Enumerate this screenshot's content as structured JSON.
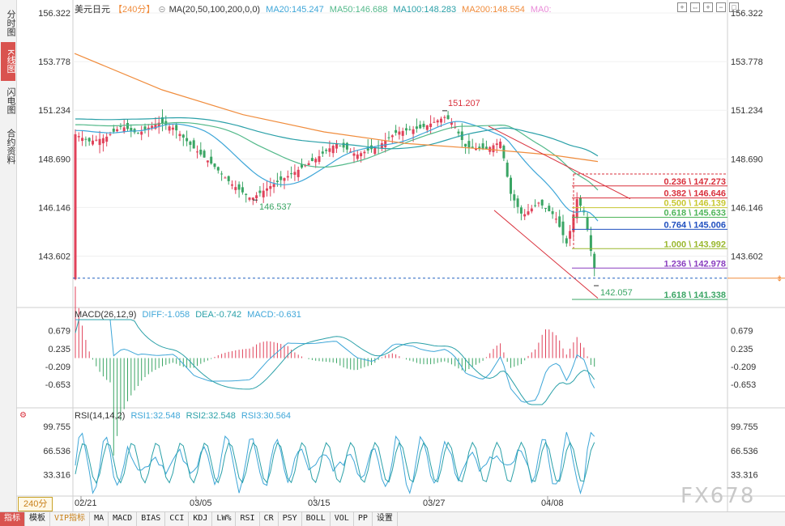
{
  "left_tabs": [
    "分时图",
    "K线图",
    "闪电图",
    "合约资料"
  ],
  "symbol": "美元日元",
  "period": "【240分】",
  "ma_label": "MA(20,50,100,200,0,0)",
  "legend": [
    {
      "text": "MA20:145.247",
      "color": "#3ea6d8"
    },
    {
      "text": "MA50:146.688",
      "color": "#53b98a"
    },
    {
      "text": "MA100:148.283",
      "color": "#2aa0a8"
    },
    {
      "text": "MA200:148.554",
      "color": "#f08c3c"
    },
    {
      "text": "MA0:",
      "color": "#e98bd8"
    }
  ],
  "macd_legend": {
    "title": "MACD(26,12,9)",
    "diff": "DIFF:-1.058",
    "dea": "DEA:-0.742",
    "macd": "MACD:-0.631"
  },
  "rsi_legend": {
    "title": "RSI(14,14,2)",
    "rsi1": "RSI1:32.548",
    "rsi2": "RSI2:32.548",
    "rsi3": "RSI3:30.564"
  },
  "period_badge": "240分",
  "bottom_tabs": [
    "指标",
    "模板",
    "VIP指标",
    "MA",
    "MACD",
    "BIAS",
    "CCI",
    "KDJ",
    "LW%",
    "RSI",
    "CR",
    "PSY",
    "BOLL",
    "VOL",
    "PP",
    "设置"
  ],
  "watermark": "FX678",
  "colors": {
    "up": "#e0425a",
    "down": "#3aa564",
    "ma20": "#3ea6d8",
    "ma50": "#53b98a",
    "ma100": "#2aa0a8",
    "ma200": "#f08c3c"
  },
  "chart_data": [
    {
      "type": "candlestick",
      "title": "美元日元 240分",
      "y_ticks": [
        "156.322",
        "153.778",
        "151.234",
        "148.690",
        "146.146",
        "143.602"
      ],
      "ylim": [
        141.0,
        156.322
      ],
      "x_ticks": [
        "02/21",
        "03/05",
        "03/15",
        "03/27",
        "04/08"
      ],
      "annotations": [
        {
          "label": "151.207",
          "type": "high"
        },
        {
          "label": "146.537",
          "type": "low"
        },
        {
          "label": "142.057",
          "type": "low"
        }
      ],
      "fibonacci": [
        {
          "label": "0.236 \\ 147.273",
          "value": 147.273,
          "color": "#d9303c"
        },
        {
          "label": "0.382 \\ 146.646",
          "value": 146.646,
          "color": "#d9303c"
        },
        {
          "label": "0.500 \\ 146.139",
          "value": 146.139,
          "color": "#c8c832"
        },
        {
          "label": "0.618 \\ 145.633",
          "value": 145.633,
          "color": "#4fb55a"
        },
        {
          "label": "0.764 \\ 145.006",
          "value": 145.006,
          "color": "#2050c0"
        },
        {
          "label": "1.000 \\ 143.992",
          "value": 143.992,
          "color": "#9ab82e"
        },
        {
          "label": "1.236 \\ 142.978",
          "value": 142.978,
          "color": "#8a3fc0"
        },
        {
          "label": "1.618 \\ 141.338",
          "value": 141.338,
          "color": "#3aa564"
        }
      ],
      "current_price_line": 142.45,
      "series": [
        {
          "name": "MA20",
          "value": 145.247
        },
        {
          "name": "MA50",
          "value": 146.688
        },
        {
          "name": "MA100",
          "value": 148.283
        },
        {
          "name": "MA200",
          "value": 148.554
        }
      ]
    },
    {
      "type": "bar",
      "title": "MACD(26,12,9)",
      "y_ticks": [
        "0.679",
        "0.235",
        "-0.209",
        "-0.653"
      ],
      "ylim": [
        -1.15,
        0.95
      ],
      "series": [
        {
          "name": "DIFF",
          "value": -1.058
        },
        {
          "name": "DEA",
          "value": -0.742
        },
        {
          "name": "MACD",
          "value": -0.631
        }
      ]
    },
    {
      "type": "line",
      "title": "RSI(14,14,2)",
      "y_ticks": [
        "99.755",
        "66.536",
        "33.316"
      ],
      "ylim": [
        5,
        110
      ],
      "series": [
        {
          "name": "RSI1",
          "value": 32.548
        },
        {
          "name": "RSI2",
          "value": 32.548
        },
        {
          "name": "RSI3",
          "value": 30.564
        }
      ]
    }
  ]
}
